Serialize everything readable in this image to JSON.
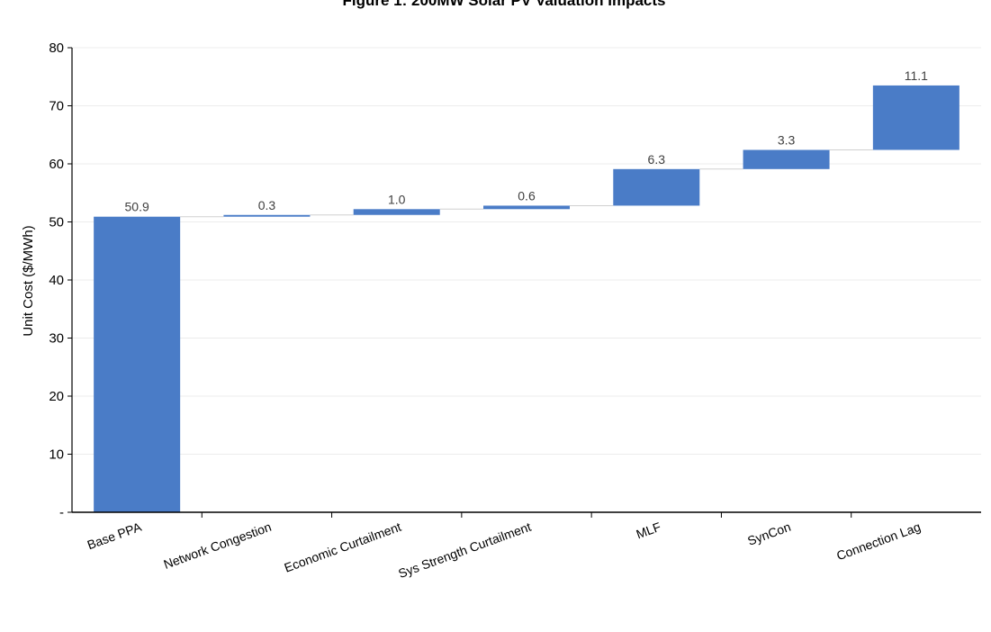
{
  "chart_data": {
    "type": "waterfall",
    "title": "Figure 1: 200MW Solar PV Valuation Impacts",
    "ylabel": "Unit Cost ($/MWh)",
    "xlabel": "",
    "ylim": [
      0,
      80
    ],
    "yticks": [
      {
        "value": 0,
        "label": "-"
      },
      {
        "value": 10,
        "label": "10"
      },
      {
        "value": 20,
        "label": "20"
      },
      {
        "value": 30,
        "label": "30"
      },
      {
        "value": 40,
        "label": "40"
      },
      {
        "value": 50,
        "label": "50"
      },
      {
        "value": 60,
        "label": "60"
      },
      {
        "value": 70,
        "label": "70"
      },
      {
        "value": 80,
        "label": "80"
      }
    ],
    "grid": true,
    "legend": "none",
    "categories": [
      "Base PPA",
      "Network Congestion",
      "Economic Curtailment",
      "Sys Strength Curtailment",
      "MLF",
      "SynCon",
      "Connection Lag"
    ],
    "values": [
      50.9,
      0.3,
      1.0,
      0.6,
      6.3,
      3.3,
      11.1
    ],
    "data_labels": [
      "50.9",
      "0.3",
      "1.0",
      "0.6",
      "6.3",
      "3.3",
      "11.1"
    ],
    "bar_color": "#4a7cc7"
  }
}
